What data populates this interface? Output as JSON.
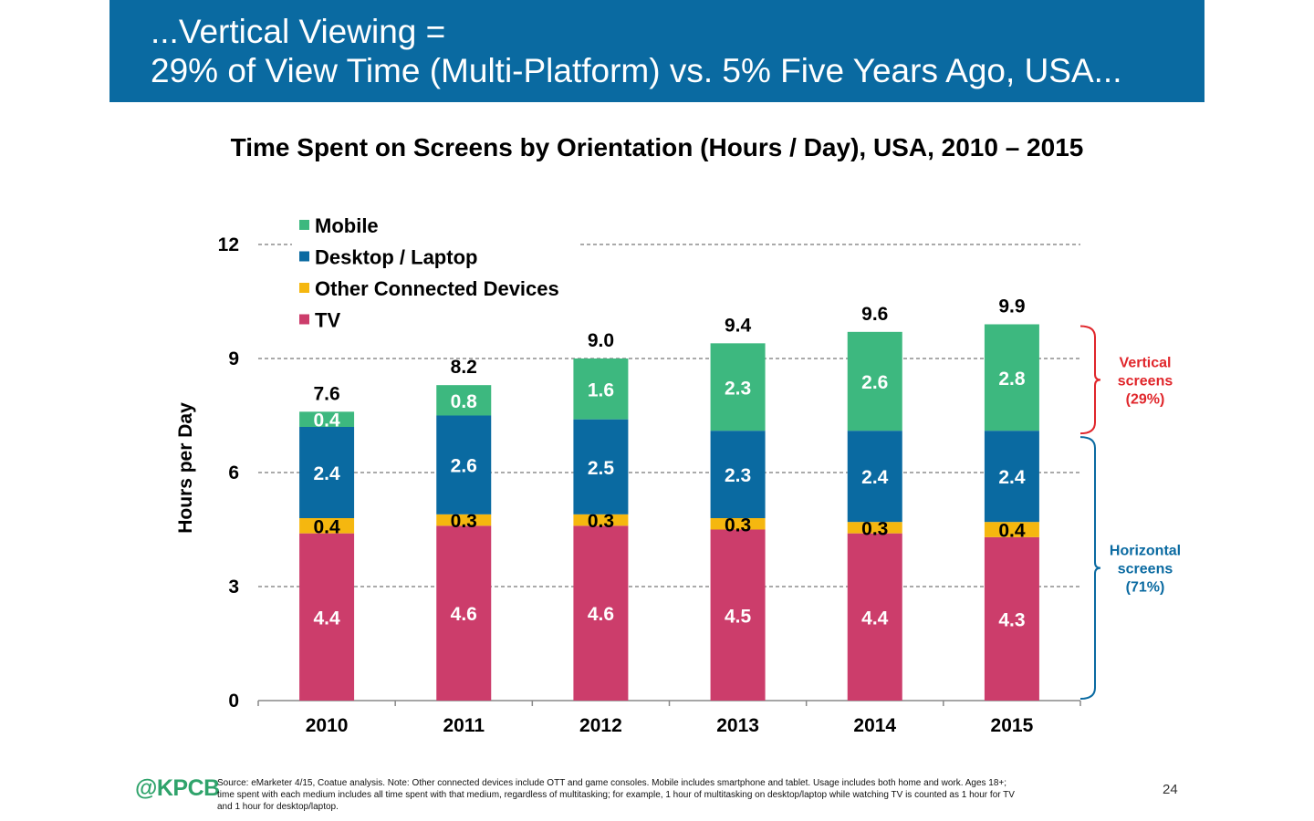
{
  "header": {
    "line1": "...Vertical Viewing =",
    "line2": "29% of View Time (Multi-Platform) vs. 5% Five Years Ago, USA..."
  },
  "chart_data": {
    "type": "bar",
    "stacked": true,
    "title": "Time Spent on Screens by Orientation (Hours / Day), USA, 2010 – 2015",
    "xlabel": "",
    "ylabel": "Hours per Day",
    "ylim": [
      0,
      12
    ],
    "yticks": [
      0,
      3,
      6,
      9,
      12
    ],
    "grid": true,
    "legend_position": "top-left",
    "categories": [
      "2010",
      "2011",
      "2012",
      "2013",
      "2014",
      "2015"
    ],
    "series": [
      {
        "name": "TV",
        "color": "#cc3d6b",
        "values": [
          4.4,
          4.6,
          4.6,
          4.5,
          4.4,
          4.3
        ]
      },
      {
        "name": "Other Connected Devices",
        "color": "#f5b70f",
        "values": [
          0.4,
          0.3,
          0.3,
          0.3,
          0.3,
          0.4
        ]
      },
      {
        "name": "Desktop / Laptop",
        "color": "#0a6aa1",
        "values": [
          2.4,
          2.6,
          2.5,
          2.3,
          2.4,
          2.4
        ]
      },
      {
        "name": "Mobile",
        "color": "#3db87f",
        "values": [
          0.4,
          0.8,
          1.6,
          2.3,
          2.6,
          2.8
        ]
      }
    ],
    "legend_order": [
      "Mobile",
      "Desktop / Laptop",
      "Other Connected Devices",
      "TV"
    ],
    "totals": [
      "7.6",
      "8.2",
      "9.0",
      "9.4",
      "9.6",
      "9.9"
    ],
    "annotations": [
      {
        "lines": [
          "Vertical",
          "screens",
          "(29%)"
        ],
        "color": "#e0262b",
        "from": 6.98,
        "to": 9.9
      },
      {
        "lines": [
          "Horizontal",
          "screens",
          "(71%)"
        ],
        "color": "#0a6aa1",
        "from": 0,
        "to": 6.98
      }
    ]
  },
  "footer": {
    "logo": "@KPCB",
    "source_lines": [
      "Source: eMarketer 4/15, Coatue analysis. Note: Other connected devices include OTT and game consoles. Mobile includes smartphone and tablet. Usage includes both home and work. Ages 18+;",
      "time spent with each medium includes all time spent with that medium, regardless of multitasking; for example, 1 hour of multitasking on desktop/laptop while watching TV is counted as 1 hour for TV",
      "and 1 hour for desktop/laptop."
    ],
    "page_number": "24"
  }
}
